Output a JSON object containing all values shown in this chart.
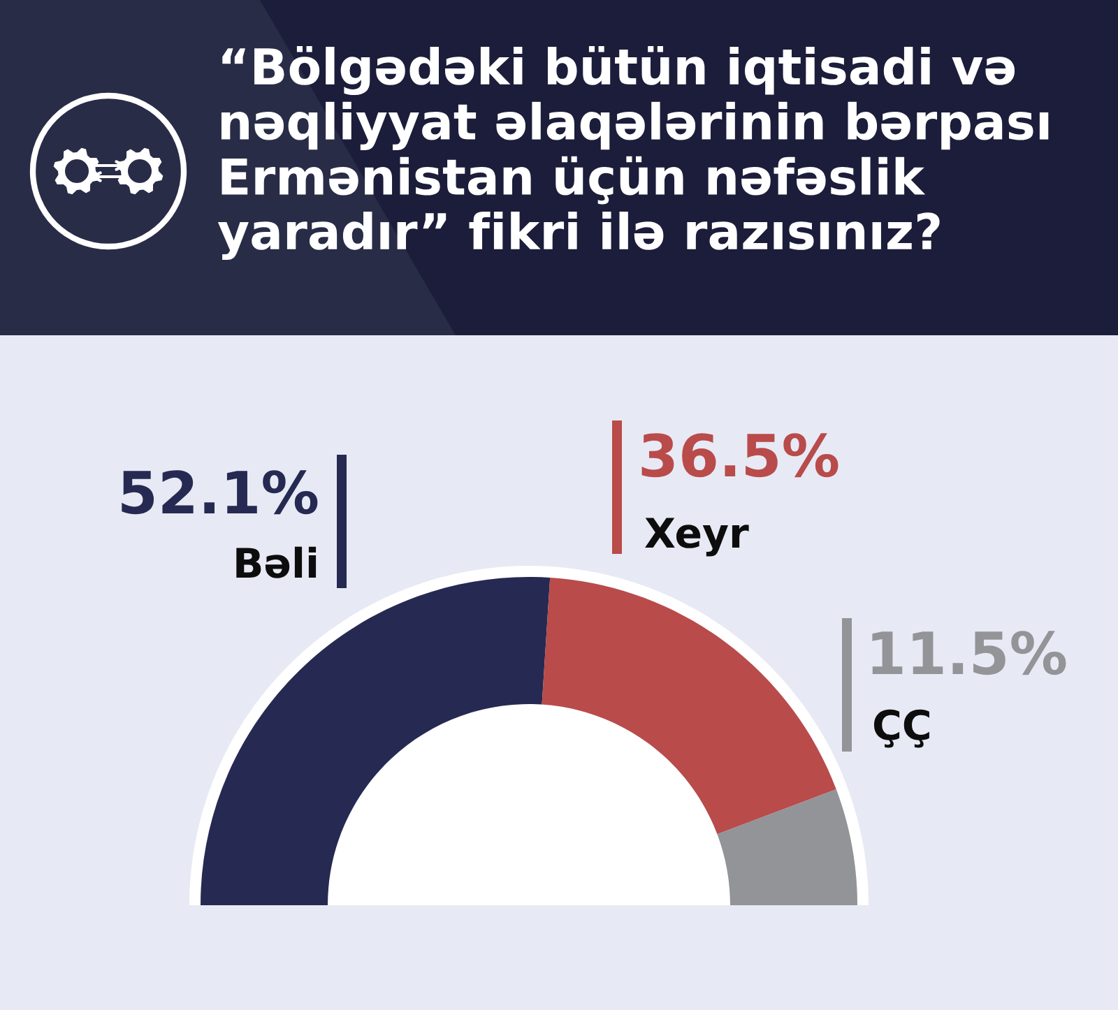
{
  "chart_data": {
    "type": "donut",
    "title": "“Bölgədəki bütün iqtisadi və nəqliyyat əlaqələrinin bərpası Ermənistan üçün nəfəslik yaradır” fikri ilə razısınız?",
    "categories": [
      "Bəli",
      "Xeyr",
      "ÇÇ"
    ],
    "values": [
      52.1,
      36.5,
      11.5
    ],
    "colors": [
      "#262a52",
      "#b94b4b",
      "#939498"
    ],
    "value_labels": [
      "52.1%",
      "36.5%",
      "11.5%"
    ]
  }
}
